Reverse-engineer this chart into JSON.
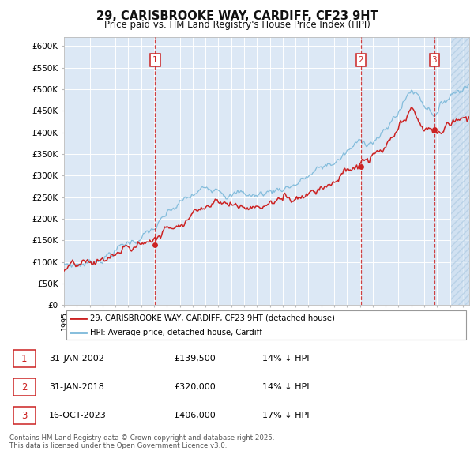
{
  "title_line1": "29, CARISBROOKE WAY, CARDIFF, CF23 9HT",
  "title_line2": "Price paid vs. HM Land Registry's House Price Index (HPI)",
  "background_color": "#ffffff",
  "plot_bg_color": "#dce8f5",
  "grid_color": "#ffffff",
  "ylim": [
    0,
    620000
  ],
  "yticks": [
    0,
    50000,
    100000,
    150000,
    200000,
    250000,
    300000,
    350000,
    400000,
    450000,
    500000,
    550000,
    600000
  ],
  "ytick_labels": [
    "£0",
    "£50K",
    "£100K",
    "£150K",
    "£200K",
    "£250K",
    "£300K",
    "£350K",
    "£400K",
    "£450K",
    "£500K",
    "£550K",
    "£600K"
  ],
  "hpi_color": "#7ab8d9",
  "price_color": "#cc2222",
  "vline_color": "#cc2222",
  "sale_dates": [
    2002.08,
    2018.08,
    2023.79
  ],
  "sale_prices": [
    139500,
    320000,
    406000
  ],
  "sale_labels": [
    "1",
    "2",
    "3"
  ],
  "hatch_start": 2025.0,
  "legend_label_red": "29, CARISBROOKE WAY, CARDIFF, CF23 9HT (detached house)",
  "legend_label_blue": "HPI: Average price, detached house, Cardiff",
  "table_rows": [
    {
      "num": "1",
      "date": "31-JAN-2002",
      "price": "£139,500",
      "hpi": "14% ↓ HPI"
    },
    {
      "num": "2",
      "date": "31-JAN-2018",
      "price": "£320,000",
      "hpi": "14% ↓ HPI"
    },
    {
      "num": "3",
      "date": "16-OCT-2023",
      "price": "£406,000",
      "hpi": "17% ↓ HPI"
    }
  ],
  "footnote": "Contains HM Land Registry data © Crown copyright and database right 2025.\nThis data is licensed under the Open Government Licence v3.0.",
  "xmin": 1995.0,
  "xmax": 2026.5,
  "xtick_start": 1995,
  "xtick_end": 2026
}
